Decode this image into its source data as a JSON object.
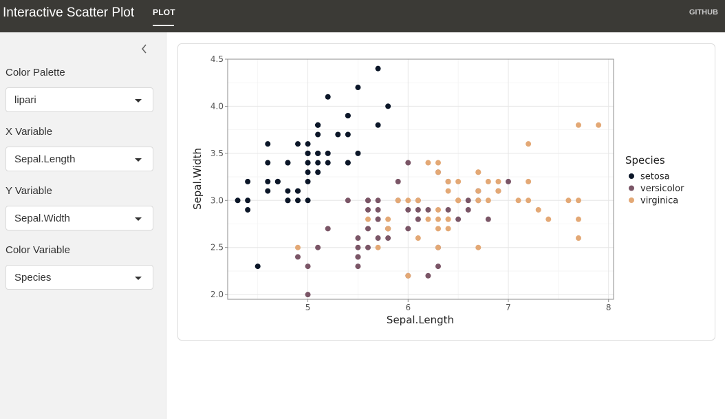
{
  "header": {
    "title": "Interactive Scatter Plot",
    "tab": "PLOT",
    "github": "GITHUB"
  },
  "sidebar": {
    "color_palette": {
      "label": "Color Palette",
      "value": "lipari"
    },
    "x_variable": {
      "label": "X Variable",
      "value": "Sepal.Length"
    },
    "y_variable": {
      "label": "Y Variable",
      "value": "Sepal.Width"
    },
    "color_variable": {
      "label": "Color Variable",
      "value": "Species"
    }
  },
  "colors": {
    "setosa": "#0b1628",
    "versicolor": "#7a5566",
    "virginica": "#e3a875"
  },
  "chart_data": {
    "type": "scatter",
    "xlabel": "Sepal.Length",
    "ylabel": "Sepal.Width",
    "xlim": [
      4.2,
      8.05
    ],
    "ylim": [
      1.95,
      4.5
    ],
    "x_ticks": [
      5,
      6,
      7,
      8
    ],
    "y_ticks": [
      2.0,
      2.5,
      3.0,
      3.5,
      4.0,
      4.5
    ],
    "x_tick_labels": [
      "5",
      "6",
      "7",
      "8"
    ],
    "y_tick_labels": [
      "2.0",
      "2.5",
      "3.0",
      "3.5",
      "4.0",
      "4.5"
    ],
    "grid": true,
    "legend": {
      "title": "Species",
      "position": "right"
    },
    "series": [
      {
        "name": "setosa",
        "points": [
          [
            5.1,
            3.5
          ],
          [
            4.9,
            3.0
          ],
          [
            4.7,
            3.2
          ],
          [
            4.6,
            3.1
          ],
          [
            5.0,
            3.6
          ],
          [
            5.4,
            3.9
          ],
          [
            4.6,
            3.4
          ],
          [
            5.0,
            3.4
          ],
          [
            4.4,
            2.9
          ],
          [
            4.9,
            3.1
          ],
          [
            5.4,
            3.7
          ],
          [
            4.8,
            3.4
          ],
          [
            4.8,
            3.0
          ],
          [
            4.3,
            3.0
          ],
          [
            5.8,
            4.0
          ],
          [
            5.7,
            4.4
          ],
          [
            5.4,
            3.9
          ],
          [
            5.1,
            3.5
          ],
          [
            5.7,
            3.8
          ],
          [
            5.1,
            3.8
          ],
          [
            5.4,
            3.4
          ],
          [
            5.1,
            3.7
          ],
          [
            4.6,
            3.6
          ],
          [
            5.1,
            3.3
          ],
          [
            4.8,
            3.4
          ],
          [
            5.0,
            3.0
          ],
          [
            5.0,
            3.4
          ],
          [
            5.2,
            3.5
          ],
          [
            5.2,
            3.4
          ],
          [
            4.7,
            3.2
          ],
          [
            4.8,
            3.1
          ],
          [
            5.4,
            3.4
          ],
          [
            5.2,
            4.1
          ],
          [
            5.5,
            4.2
          ],
          [
            4.9,
            3.1
          ],
          [
            5.0,
            3.2
          ],
          [
            5.5,
            3.5
          ],
          [
            4.9,
            3.6
          ],
          [
            4.4,
            3.0
          ],
          [
            5.1,
            3.4
          ],
          [
            5.0,
            3.5
          ],
          [
            4.5,
            2.3
          ],
          [
            4.4,
            3.2
          ],
          [
            5.0,
            3.5
          ],
          [
            5.1,
            3.8
          ],
          [
            4.8,
            3.0
          ],
          [
            5.1,
            3.8
          ],
          [
            4.6,
            3.2
          ],
          [
            5.3,
            3.7
          ],
          [
            5.0,
            3.3
          ]
        ]
      },
      {
        "name": "versicolor",
        "points": [
          [
            7.0,
            3.2
          ],
          [
            6.4,
            3.2
          ],
          [
            6.9,
            3.1
          ],
          [
            5.5,
            2.3
          ],
          [
            6.5,
            2.8
          ],
          [
            5.7,
            2.8
          ],
          [
            6.3,
            3.3
          ],
          [
            4.9,
            2.4
          ],
          [
            6.6,
            2.9
          ],
          [
            5.2,
            2.7
          ],
          [
            5.0,
            2.0
          ],
          [
            5.9,
            3.0
          ],
          [
            6.0,
            2.2
          ],
          [
            6.1,
            2.9
          ],
          [
            5.6,
            2.9
          ],
          [
            6.7,
            3.1
          ],
          [
            5.6,
            3.0
          ],
          [
            5.8,
            2.7
          ],
          [
            6.2,
            2.2
          ],
          [
            5.6,
            2.5
          ],
          [
            5.9,
            3.2
          ],
          [
            6.1,
            2.8
          ],
          [
            6.3,
            2.5
          ],
          [
            6.1,
            2.8
          ],
          [
            6.4,
            2.9
          ],
          [
            6.6,
            3.0
          ],
          [
            6.8,
            2.8
          ],
          [
            6.7,
            3.0
          ],
          [
            6.0,
            2.9
          ],
          [
            5.7,
            2.6
          ],
          [
            5.5,
            2.4
          ],
          [
            5.5,
            2.4
          ],
          [
            5.8,
            2.7
          ],
          [
            6.0,
            2.7
          ],
          [
            5.4,
            3.0
          ],
          [
            6.0,
            3.4
          ],
          [
            6.7,
            3.1
          ],
          [
            6.3,
            2.3
          ],
          [
            5.6,
            3.0
          ],
          [
            5.5,
            2.5
          ],
          [
            5.5,
            2.6
          ],
          [
            6.1,
            3.0
          ],
          [
            5.8,
            2.6
          ],
          [
            5.0,
            2.3
          ],
          [
            5.6,
            2.7
          ],
          [
            5.7,
            3.0
          ],
          [
            5.7,
            2.9
          ],
          [
            6.2,
            2.9
          ],
          [
            5.1,
            2.5
          ],
          [
            5.7,
            2.8
          ]
        ]
      },
      {
        "name": "virginica",
        "points": [
          [
            6.3,
            3.3
          ],
          [
            5.8,
            2.7
          ],
          [
            7.1,
            3.0
          ],
          [
            6.3,
            2.9
          ],
          [
            6.5,
            3.0
          ],
          [
            7.6,
            3.0
          ],
          [
            4.9,
            2.5
          ],
          [
            7.3,
            2.9
          ],
          [
            6.7,
            2.5
          ],
          [
            7.2,
            3.6
          ],
          [
            6.5,
            3.2
          ],
          [
            6.4,
            2.7
          ],
          [
            6.8,
            3.0
          ],
          [
            5.7,
            2.5
          ],
          [
            5.8,
            2.8
          ],
          [
            6.4,
            3.2
          ],
          [
            6.5,
            3.0
          ],
          [
            7.7,
            3.8
          ],
          [
            7.7,
            2.6
          ],
          [
            6.0,
            2.2
          ],
          [
            6.9,
            3.2
          ],
          [
            5.6,
            2.8
          ],
          [
            7.7,
            2.8
          ],
          [
            6.3,
            2.7
          ],
          [
            6.7,
            3.3
          ],
          [
            7.2,
            3.2
          ],
          [
            6.2,
            2.8
          ],
          [
            6.1,
            3.0
          ],
          [
            6.4,
            2.8
          ],
          [
            7.2,
            3.0
          ],
          [
            7.4,
            2.8
          ],
          [
            7.9,
            3.8
          ],
          [
            6.4,
            2.8
          ],
          [
            6.3,
            2.8
          ],
          [
            6.1,
            2.6
          ],
          [
            7.7,
            3.0
          ],
          [
            6.3,
            3.4
          ],
          [
            6.4,
            3.1
          ],
          [
            6.0,
            3.0
          ],
          [
            6.9,
            3.1
          ],
          [
            6.7,
            3.1
          ],
          [
            6.9,
            3.1
          ],
          [
            5.8,
            2.7
          ],
          [
            6.8,
            3.2
          ],
          [
            6.7,
            3.3
          ],
          [
            6.7,
            3.0
          ],
          [
            6.3,
            2.5
          ],
          [
            6.5,
            3.0
          ],
          [
            6.2,
            3.4
          ],
          [
            5.9,
            3.0
          ]
        ]
      }
    ]
  }
}
